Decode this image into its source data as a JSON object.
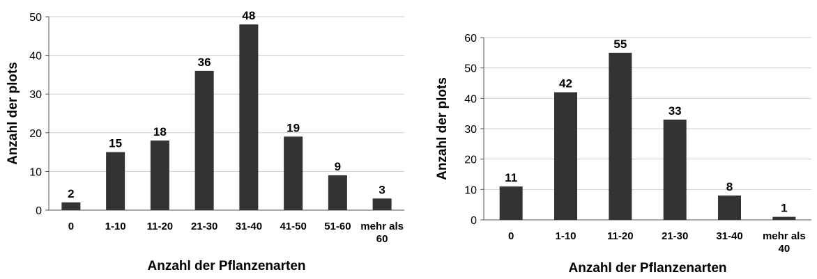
{
  "chart_data": [
    {
      "type": "bar",
      "categories": [
        "0",
        "1-10",
        "11-20",
        "21-30",
        "31-40",
        "41-50",
        "51-60",
        "mehr als 60"
      ],
      "values": [
        2,
        15,
        18,
        36,
        48,
        19,
        9,
        3
      ],
      "xlabel": "Anzahl der Pflanzenarten",
      "ylabel": "Anzahl der plots",
      "ylim": [
        0,
        50
      ],
      "yticks": [
        0,
        10,
        20,
        30,
        40,
        50
      ],
      "grid": true,
      "bar_color": "#333333",
      "grid_color": "#cfcfcf"
    },
    {
      "type": "bar",
      "categories": [
        "0",
        "1-10",
        "11-20",
        "21-30",
        "31-40",
        "mehr als 40"
      ],
      "values": [
        11,
        42,
        55,
        33,
        8,
        1
      ],
      "xlabel": "Anzahl der Pflanzenarten",
      "ylabel": "Anzahl der plots",
      "ylim": [
        0,
        60
      ],
      "yticks": [
        0,
        10,
        20,
        30,
        40,
        50,
        60
      ],
      "grid": true,
      "bar_color": "#333333",
      "grid_color": "#cfcfcf"
    }
  ]
}
